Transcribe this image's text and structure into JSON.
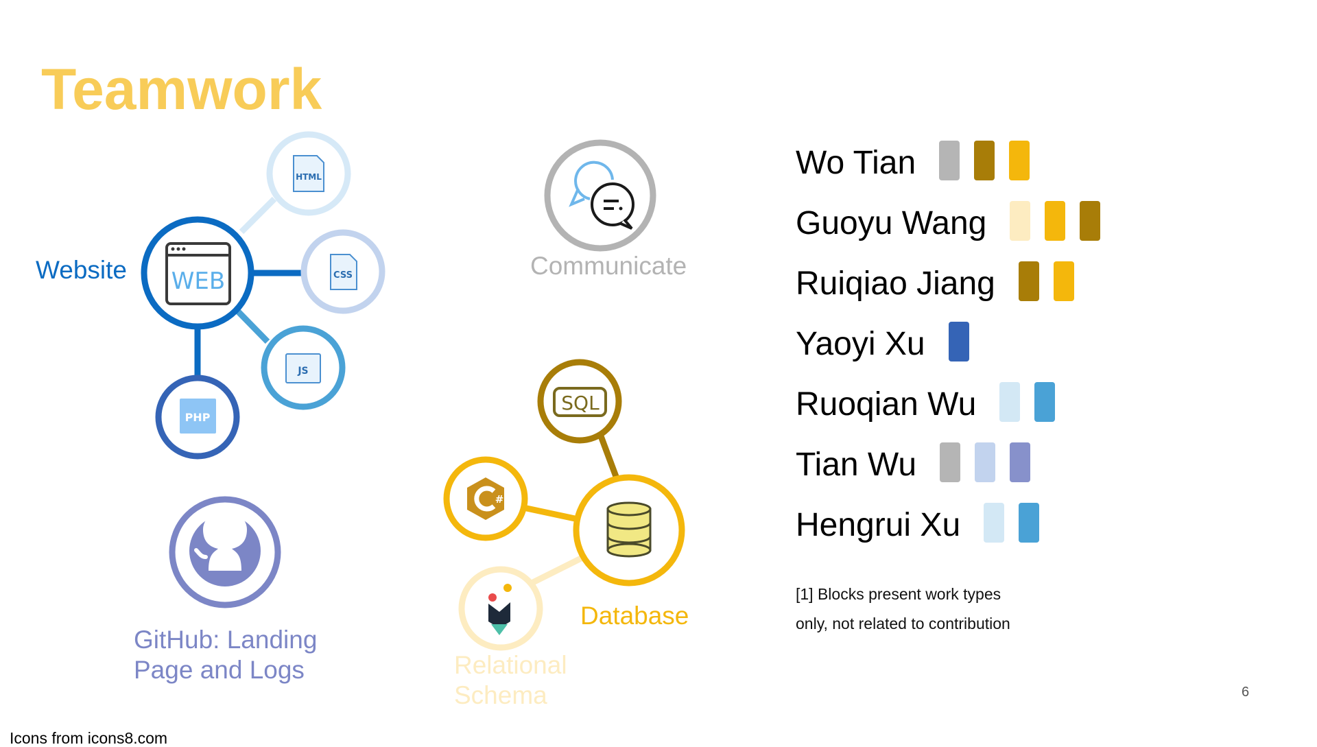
{
  "slide": {
    "title": "Teamwork",
    "page_number": "6",
    "credits": "Icons from icons8.com",
    "footnote": "[1] Blocks present work types only, not related to contribution"
  },
  "labels": {
    "website": "Website",
    "communicate": "Communicate",
    "github_line1": "GitHub: Landing",
    "github_line2": "Page and Logs",
    "database": "Database",
    "relational_line1": "Relational",
    "relational_line2": "Schema"
  },
  "icons": {
    "web": "WEB",
    "html": "HTML",
    "css": "CSS",
    "js": "JS",
    "php": "PHP",
    "sql": "SQL"
  },
  "colors": {
    "website": "#0B6BC2",
    "communicate": "#B3B3B3",
    "github": "#7C86C6",
    "database": "#F4B70C",
    "relational": "#FDECC1",
    "title": "#F8CC58"
  },
  "members": [
    {
      "name": "Wo Tian",
      "blocks": [
        "#B5B5B5",
        "#A87D08",
        "#F4B70C"
      ]
    },
    {
      "name": "Guoyu Wang",
      "blocks": [
        "#FDECC1",
        "#F4B70C",
        "#A87D08"
      ]
    },
    {
      "name": "Ruiqiao Jiang",
      "blocks": [
        "#A87D08",
        "#F4B70C"
      ]
    },
    {
      "name": "Yaoyi Xu",
      "blocks": [
        "#3564B6"
      ]
    },
    {
      "name": "Ruoqian Wu",
      "blocks": [
        "#D3E8F5",
        "#4AA2D6"
      ]
    },
    {
      "name": "Tian Wu",
      "blocks": [
        "#B5B5B5",
        "#C2D3EE",
        "#8791CB"
      ]
    },
    {
      "name": "Hengrui Xu",
      "blocks": [
        "#D3E8F5",
        "#4AA2D6"
      ]
    }
  ]
}
